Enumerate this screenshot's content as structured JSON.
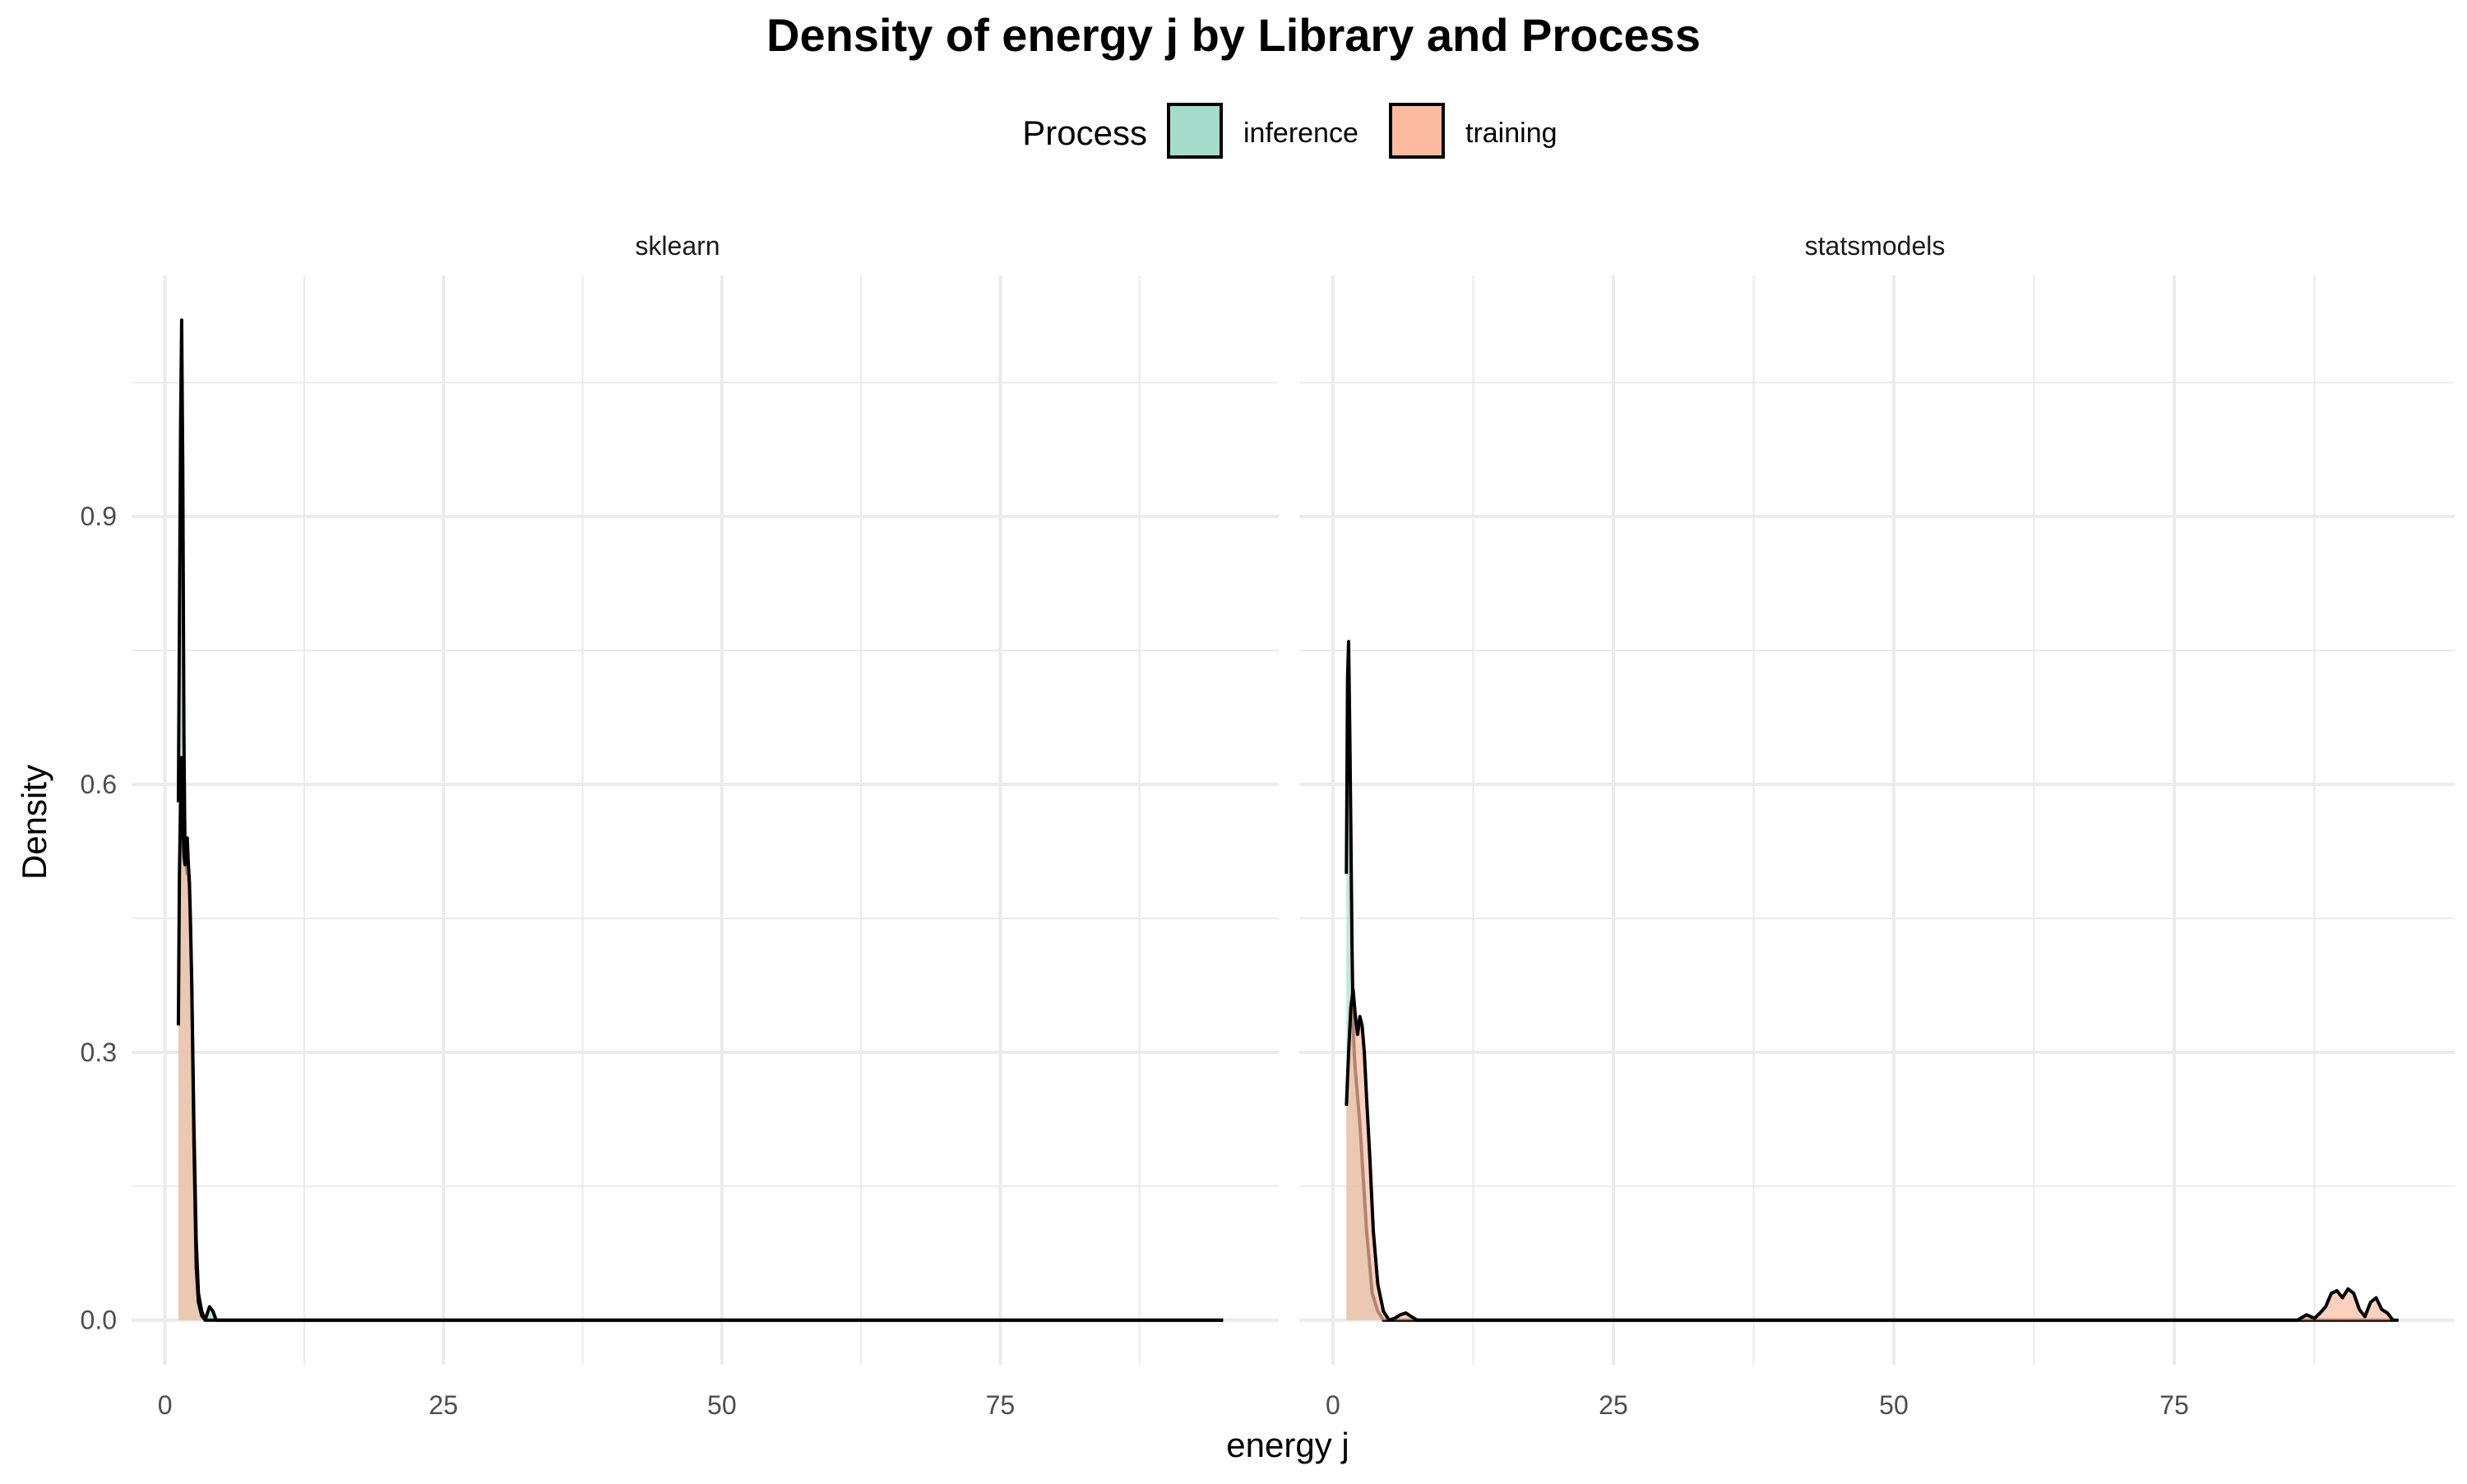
{
  "chart_data": {
    "type": "area",
    "title": "Density of energy j by Library and Process",
    "xlabel": "energy j",
    "ylabel": "Density",
    "legend": {
      "title": "Process",
      "position": "top",
      "entries": [
        {
          "label": "inference",
          "color": "#a6dccb"
        },
        {
          "label": "training",
          "color": "#fcbba1"
        }
      ]
    },
    "xlim": [
      -3,
      100
    ],
    "ylim": [
      -0.05,
      1.17
    ],
    "x_ticks": [
      0,
      25,
      50,
      75
    ],
    "x_tick_labels": [
      "0",
      "25",
      "50",
      "75"
    ],
    "y_ticks": [
      0.0,
      0.3,
      0.6,
      0.9
    ],
    "y_tick_labels": [
      "0.0",
      "0.3",
      "0.6",
      "0.9"
    ],
    "grid": true,
    "fill_opacity": 0.7,
    "colors": {
      "inference": "#a6dccb",
      "training": "#fcbba1",
      "outline": "#000000",
      "grid": "#ebebeb",
      "text": "#4d4d4d"
    },
    "facets": [
      {
        "label": "sklearn",
        "series": [
          {
            "name": "inference",
            "x": [
              1.2,
              1.4,
              1.5,
              1.6,
              1.7,
              1.8,
              1.9,
              2.0,
              2.1,
              2.2,
              2.4,
              2.6,
              2.8,
              3.0,
              3.3,
              3.6,
              4.0,
              4.3,
              4.6,
              5.0,
              95
            ],
            "y": [
              0.58,
              1.0,
              1.12,
              0.95,
              0.65,
              0.52,
              0.51,
              0.5,
              0.5,
              0.48,
              0.38,
              0.22,
              0.09,
              0.03,
              0.01,
              0.0,
              0.015,
              0.01,
              0.0,
              0.0,
              0.0
            ]
          },
          {
            "name": "training",
            "x": [
              1.2,
              1.3,
              1.4,
              1.5,
              1.6,
              1.7,
              1.8,
              1.9,
              2.0,
              2.1,
              2.2,
              2.3,
              2.4,
              2.6,
              2.8,
              3.0,
              3.3,
              3.6,
              95
            ],
            "y": [
              0.33,
              0.5,
              0.58,
              0.63,
              0.56,
              0.52,
              0.51,
              0.53,
              0.54,
              0.51,
              0.49,
              0.44,
              0.38,
              0.2,
              0.06,
              0.02,
              0.005,
              0.0,
              0.0
            ]
          }
        ]
      },
      {
        "label": "statsmodels",
        "series": [
          {
            "name": "inference",
            "x": [
              1.2,
              1.3,
              1.4,
              1.5,
              1.6,
              1.7,
              1.8,
              1.9,
              2.0,
              2.2,
              2.4,
              2.6,
              2.8,
              3.0,
              3.5,
              4.0,
              4.5,
              5.0,
              95
            ],
            "y": [
              0.5,
              0.72,
              0.76,
              0.66,
              0.55,
              0.42,
              0.33,
              0.3,
              0.28,
              0.25,
              0.22,
              0.18,
              0.14,
              0.1,
              0.03,
              0.01,
              0.0,
              0.0,
              0.0
            ]
          },
          {
            "name": "training",
            "x": [
              1.2,
              1.4,
              1.6,
              1.8,
              2.0,
              2.2,
              2.4,
              2.6,
              2.8,
              3.0,
              3.3,
              3.6,
              4.0,
              4.5,
              5.0,
              5.5,
              6.0,
              6.5,
              7.0,
              7.5,
              8.0,
              86.0,
              86.8,
              87.5,
              88.0,
              88.5,
              89.0,
              89.5,
              90.0,
              90.5,
              91.0,
              91.5,
              92.0,
              92.5,
              93.0,
              93.5,
              94.0,
              94.5
            ],
            "y": [
              0.24,
              0.3,
              0.35,
              0.37,
              0.34,
              0.32,
              0.34,
              0.33,
              0.3,
              0.25,
              0.18,
              0.1,
              0.04,
              0.01,
              0.0,
              0.002,
              0.006,
              0.008,
              0.004,
              0.0,
              0.0,
              0.0,
              0.006,
              0.002,
              0.008,
              0.015,
              0.03,
              0.033,
              0.025,
              0.035,
              0.03,
              0.012,
              0.004,
              0.02,
              0.025,
              0.012,
              0.008,
              0.0
            ]
          }
        ]
      }
    ]
  }
}
